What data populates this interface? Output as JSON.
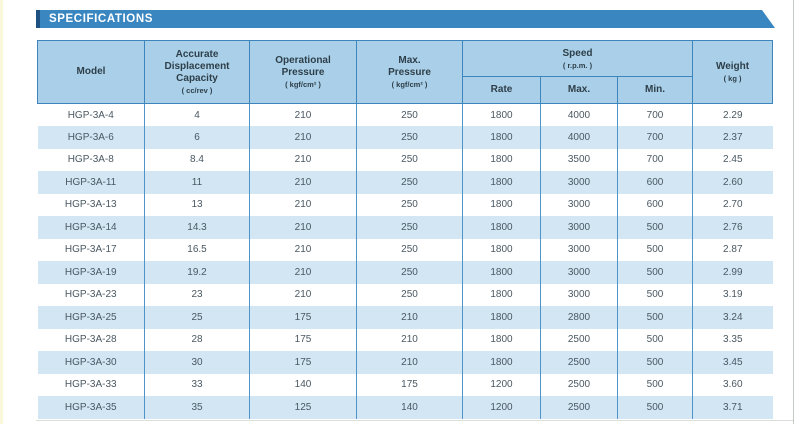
{
  "banner": {
    "title": "SPECIFICATIONS"
  },
  "table": {
    "header": {
      "model": "Model",
      "capacity_title": "Accurate\nDisplacement\nCapacity",
      "capacity_unit": "( cc/rev )",
      "op_pressure_title": "Operational\nPressure",
      "op_pressure_unit": "( kgf/cm² )",
      "max_pressure_title": "Max.\nPressure",
      "max_pressure_unit": "( kgf/cm² )",
      "speed_title": "Speed",
      "speed_unit": "( r.p.m. )",
      "speed_rate": "Rate",
      "speed_max": "Max.",
      "speed_min": "Min.",
      "weight_title": "Weight",
      "weight_unit": "( kg )"
    },
    "rows": [
      [
        "HGP-3A-4",
        "4",
        "210",
        "250",
        "1800",
        "4000",
        "700",
        "2.29"
      ],
      [
        "HGP-3A-6",
        "6",
        "210",
        "250",
        "1800",
        "4000",
        "700",
        "2.37"
      ],
      [
        "HGP-3A-8",
        "8.4",
        "210",
        "250",
        "1800",
        "3500",
        "700",
        "2.45"
      ],
      [
        "HGP-3A-11",
        "11",
        "210",
        "250",
        "1800",
        "3000",
        "600",
        "2.60"
      ],
      [
        "HGP-3A-13",
        "13",
        "210",
        "250",
        "1800",
        "3000",
        "600",
        "2.70"
      ],
      [
        "HGP-3A-14",
        "14.3",
        "210",
        "250",
        "1800",
        "3000",
        "500",
        "2.76"
      ],
      [
        "HGP-3A-17",
        "16.5",
        "210",
        "250",
        "1800",
        "3000",
        "500",
        "2.87"
      ],
      [
        "HGP-3A-19",
        "19.2",
        "210",
        "250",
        "1800",
        "3000",
        "500",
        "2.99"
      ],
      [
        "HGP-3A-23",
        "23",
        "210",
        "250",
        "1800",
        "3000",
        "500",
        "3.19"
      ],
      [
        "HGP-3A-25",
        "25",
        "175",
        "210",
        "1800",
        "2800",
        "500",
        "3.24"
      ],
      [
        "HGP-3A-28",
        "28",
        "175",
        "210",
        "1800",
        "2500",
        "500",
        "3.35"
      ],
      [
        "HGP-3A-30",
        "30",
        "175",
        "210",
        "1800",
        "2500",
        "500",
        "3.45"
      ],
      [
        "HGP-3A-33",
        "33",
        "140",
        "175",
        "1200",
        "2500",
        "500",
        "3.60"
      ],
      [
        "HGP-3A-35",
        "35",
        "125",
        "140",
        "1200",
        "2500",
        "500",
        "3.71"
      ]
    ]
  },
  "colors": {
    "banner_blue": "#3a86c1",
    "banner_dark_cap": "#1e5181",
    "header_bg": "#a9d0e8",
    "stripe_bg": "#d2e6f4",
    "header_border": "#3e85bd",
    "grid_line": "#4e94c9",
    "header_text": "#2e3e49",
    "data_text": "#4a5862",
    "left_strip": "#faf8da"
  }
}
